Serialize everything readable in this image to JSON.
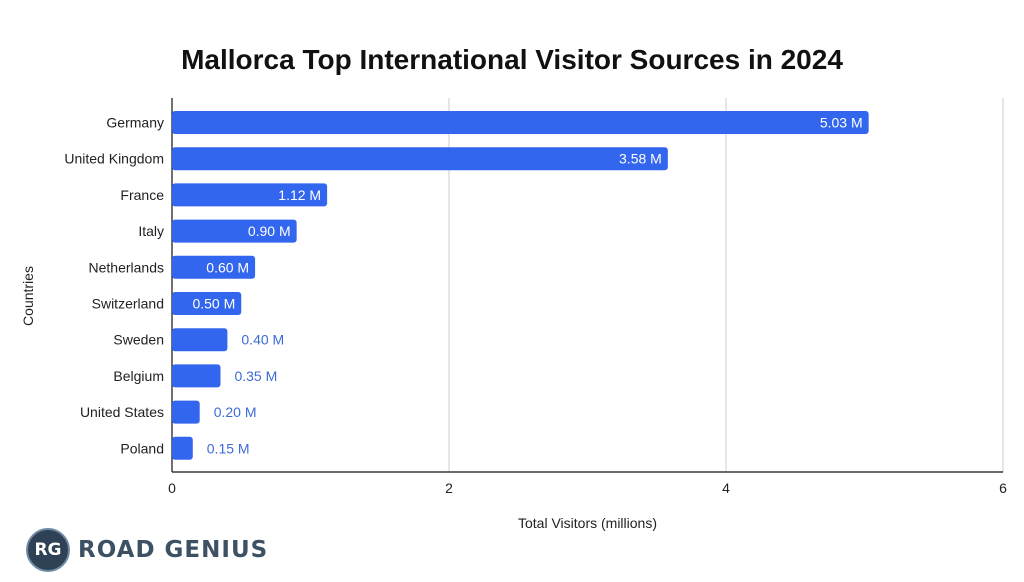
{
  "chart_data": {
    "type": "bar",
    "orientation": "horizontal",
    "title": "Mallorca Top International Visitor Sources in 2024",
    "xlabel": "Total Visitors (millions)",
    "ylabel": "Countries",
    "categories": [
      "Germany",
      "United Kingdom",
      "France",
      "Italy",
      "Netherlands",
      "Switzerland",
      "Sweden",
      "Belgium",
      "United States",
      "Poland"
    ],
    "values": [
      5.03,
      3.58,
      1.12,
      0.9,
      0.6,
      0.5,
      0.4,
      0.35,
      0.2,
      0.15
    ],
    "data_labels": [
      "5.03 M",
      "3.58 M",
      "1.12 M",
      "0.90 M",
      "0.60 M",
      "0.50 M",
      "0.40 M",
      "0.35 M",
      "0.20 M",
      "0.15 M"
    ],
    "xlim": [
      0,
      6
    ],
    "xticks": [
      0,
      2,
      4,
      6
    ],
    "xtick_labels": [
      "0",
      "2",
      "4",
      "6"
    ],
    "grid": true,
    "legend": "none",
    "colors": {
      "bar": "#3366ee",
      "label_inside": "#ffffff",
      "label_outside": "#3d6bd6",
      "grid": "#cccccc",
      "axis": "#111111",
      "text": "#222222"
    }
  },
  "branding": {
    "logo_initials": "RG",
    "logo_text": "ROAD GENIUS"
  }
}
